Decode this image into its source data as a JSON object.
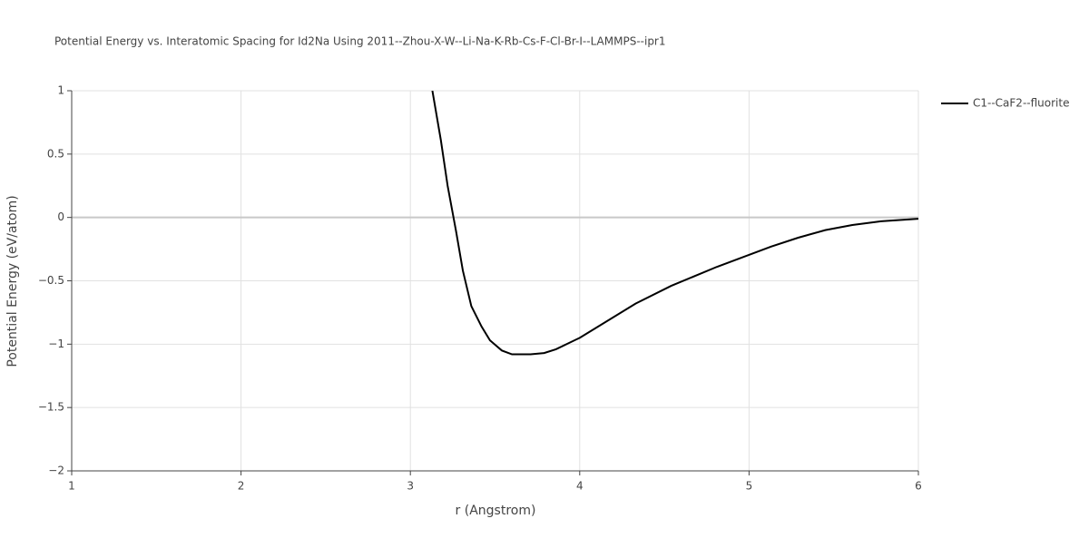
{
  "chart_data": {
    "type": "line",
    "title": "Potential Energy vs. Interatomic Spacing for Id2Na Using 2011--Zhou-X-W--Li-Na-K-Rb-Cs-F-Cl-Br-I--LAMMPS--ipr1",
    "x_label": "r (Angstrom)",
    "y_label": "Potential Energy (eV/atom)",
    "x": [
      3.13,
      3.18,
      3.22,
      3.27,
      3.31,
      3.36,
      3.42,
      3.47,
      3.54,
      3.6,
      3.71,
      3.79,
      3.86,
      4.0,
      4.33,
      4.54,
      4.81,
      5.13,
      5.29,
      5.45,
      5.61,
      5.78,
      6.0
    ],
    "series": [
      {
        "name": "C1--CaF2--fluorite",
        "color": "#000000",
        "values": [
          1.0,
          0.61,
          0.25,
          -0.11,
          -0.42,
          -0.7,
          -0.86,
          -0.97,
          -1.05,
          -1.08,
          -1.08,
          -1.07,
          -1.04,
          -0.95,
          -0.68,
          -0.54,
          -0.39,
          -0.23,
          -0.16,
          -0.1,
          -0.06,
          -0.03,
          -0.01
        ]
      }
    ],
    "xlim": [
      1,
      6
    ],
    "ylim": [
      -2,
      1
    ],
    "xticks": [
      1,
      2,
      3,
      4,
      5,
      6
    ],
    "yticks": [
      {
        "value": -2,
        "label": "−2"
      },
      {
        "value": -1.5,
        "label": "−1.5"
      },
      {
        "value": -1,
        "label": "−1"
      },
      {
        "value": -0.5,
        "label": "−0.5"
      },
      0,
      0.5,
      1
    ],
    "grid": true,
    "legend": "right"
  }
}
